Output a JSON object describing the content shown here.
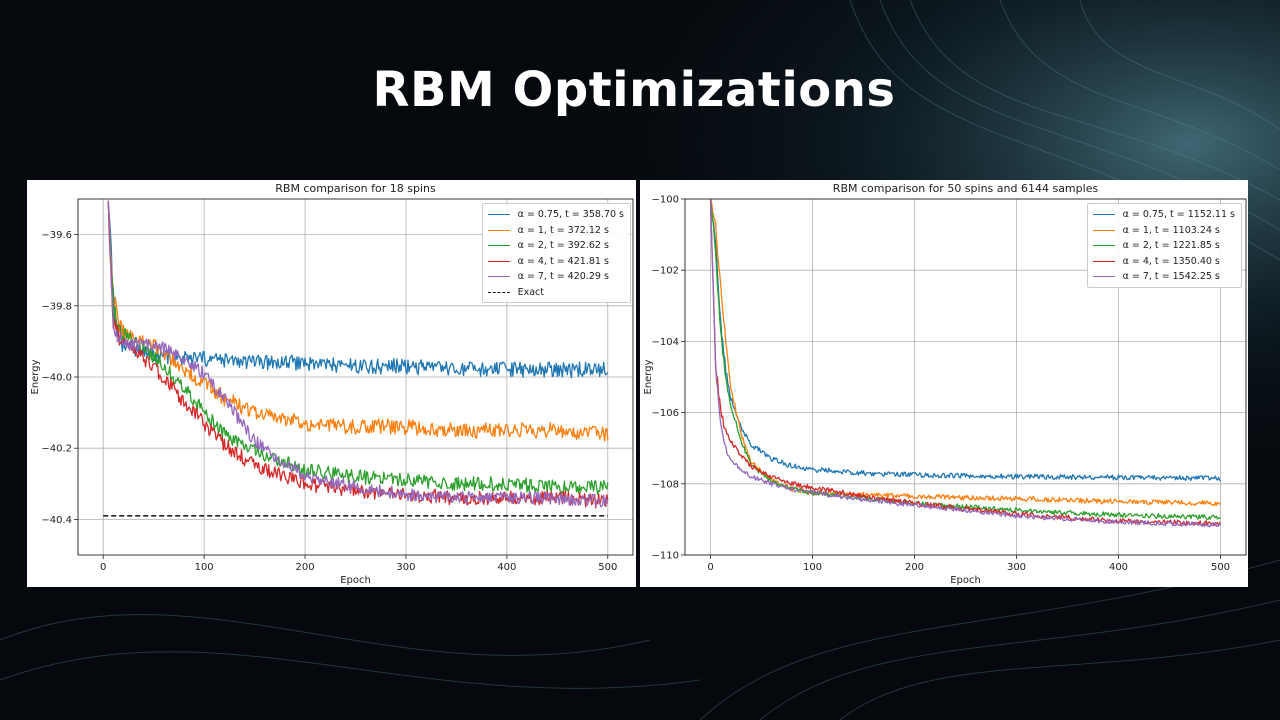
{
  "slide": {
    "title": "RBM Optimizations"
  },
  "colors": {
    "background": "#05080c",
    "alpha_0_75": "#1f77b4",
    "alpha_1": "#ff7f0e",
    "alpha_2": "#2ca02c",
    "alpha_4": "#d62728",
    "alpha_7": "#9467bd",
    "exact": "#000000"
  },
  "chart_data": [
    {
      "type": "line",
      "title": "RBM comparison for 18 spins",
      "xlabel": "Epoch",
      "ylabel": "Energy",
      "xlim": [
        -25,
        525
      ],
      "ylim": [
        -40.5,
        -39.5
      ],
      "xticks": [
        0,
        100,
        200,
        300,
        400,
        500
      ],
      "yticks": [
        -39.6,
        -39.8,
        -40.0,
        -40.2,
        -40.4
      ],
      "ytick_labels": [
        "−39.6",
        "−39.8",
        "−40.0",
        "−40.2",
        "−40.4"
      ],
      "grid": true,
      "legend_position": "top-right",
      "series": [
        {
          "name": "α = 0.75, t = 358.70 s",
          "color": "#1f77b4",
          "x": [
            5,
            10,
            15,
            20,
            30,
            40,
            60,
            80,
            100,
            150,
            200,
            250,
            300,
            350,
            400,
            450,
            500
          ],
          "values": [
            -39.5,
            -39.78,
            -39.88,
            -39.9,
            -39.92,
            -39.93,
            -39.94,
            -39.95,
            -39.95,
            -39.96,
            -39.96,
            -39.97,
            -39.97,
            -39.98,
            -39.98,
            -39.98,
            -39.98
          ],
          "noise": 0.022
        },
        {
          "name": "α = 1, t = 372.12 s",
          "color": "#ff7f0e",
          "x": [
            5,
            10,
            15,
            20,
            30,
            40,
            60,
            80,
            100,
            120,
            150,
            200,
            250,
            300,
            350,
            400,
            450,
            500
          ],
          "values": [
            -39.5,
            -39.78,
            -39.85,
            -39.87,
            -39.89,
            -39.9,
            -39.93,
            -39.98,
            -40.02,
            -40.06,
            -40.1,
            -40.13,
            -40.14,
            -40.14,
            -40.15,
            -40.15,
            -40.15,
            -40.16
          ],
          "noise": 0.022
        },
        {
          "name": "α = 2, t = 392.62 s",
          "color": "#2ca02c",
          "x": [
            5,
            10,
            15,
            20,
            30,
            40,
            60,
            80,
            100,
            120,
            150,
            200,
            250,
            300,
            350,
            400,
            450,
            500
          ],
          "values": [
            -39.5,
            -39.8,
            -39.86,
            -39.88,
            -39.9,
            -39.92,
            -39.97,
            -40.03,
            -40.1,
            -40.16,
            -40.21,
            -40.26,
            -40.28,
            -40.29,
            -40.3,
            -40.3,
            -40.31,
            -40.31
          ],
          "noise": 0.02
        },
        {
          "name": "α = 4, t = 421.81 s",
          "color": "#d62728",
          "x": [
            5,
            10,
            15,
            20,
            30,
            40,
            60,
            80,
            100,
            120,
            150,
            200,
            250,
            300,
            350,
            400,
            450,
            500
          ],
          "values": [
            -39.5,
            -39.86,
            -39.88,
            -39.9,
            -39.92,
            -39.95,
            -40.0,
            -40.07,
            -40.13,
            -40.19,
            -40.25,
            -40.3,
            -40.32,
            -40.33,
            -40.34,
            -40.34,
            -40.34,
            -40.35
          ],
          "noise": 0.02
        },
        {
          "name": "α = 7, t = 420.29 s",
          "color": "#9467bd",
          "x": [
            5,
            10,
            15,
            20,
            30,
            40,
            60,
            80,
            100,
            120,
            150,
            200,
            250,
            300,
            350,
            400,
            450,
            500
          ],
          "values": [
            -39.5,
            -39.88,
            -39.9,
            -39.91,
            -39.91,
            -39.91,
            -39.92,
            -39.95,
            -39.99,
            -40.06,
            -40.18,
            -40.28,
            -40.31,
            -40.33,
            -40.34,
            -40.34,
            -40.34,
            -40.35
          ],
          "noise": 0.018
        },
        {
          "name": "Exact",
          "color": "#000000",
          "dashed": true,
          "x": [
            0,
            500
          ],
          "values": [
            -40.39,
            -40.39
          ]
        }
      ]
    },
    {
      "type": "line",
      "title": "RBM comparison for 50 spins and 6144 samples",
      "xlabel": "Epoch",
      "ylabel": "Energy",
      "xlim": [
        -25,
        525
      ],
      "ylim": [
        -110,
        -100
      ],
      "xticks": [
        0,
        100,
        200,
        300,
        400,
        500
      ],
      "yticks": [
        -100,
        -102,
        -104,
        -106,
        -108,
        -110
      ],
      "ytick_labels": [
        "−100",
        "−102",
        "−104",
        "−106",
        "−108",
        "−110"
      ],
      "grid": true,
      "legend_position": "top-right",
      "series": [
        {
          "name": "α = 0.75, t = 1152.11 s",
          "color": "#1f77b4",
          "x": [
            0,
            5,
            10,
            15,
            20,
            30,
            40,
            60,
            80,
            100,
            150,
            200,
            300,
            400,
            500
          ],
          "values": [
            -100,
            -101.2,
            -103.5,
            -104.8,
            -105.6,
            -106.4,
            -106.9,
            -107.3,
            -107.5,
            -107.6,
            -107.7,
            -107.75,
            -107.8,
            -107.82,
            -107.85
          ],
          "noise": 0.07
        },
        {
          "name": "α = 1, t = 1103.24 s",
          "color": "#ff7f0e",
          "x": [
            0,
            5,
            10,
            15,
            20,
            30,
            40,
            60,
            80,
            100,
            150,
            200,
            300,
            400,
            500
          ],
          "values": [
            -100,
            -100.8,
            -102.5,
            -104.0,
            -105.3,
            -106.6,
            -107.4,
            -107.9,
            -108.15,
            -108.25,
            -108.3,
            -108.35,
            -108.42,
            -108.5,
            -108.55
          ],
          "noise": 0.07
        },
        {
          "name": "α = 2, t = 1221.85 s",
          "color": "#2ca02c",
          "x": [
            0,
            5,
            10,
            15,
            20,
            30,
            40,
            60,
            80,
            100,
            150,
            200,
            300,
            400,
            500
          ],
          "values": [
            -100,
            -101.5,
            -103.8,
            -105.0,
            -105.8,
            -106.8,
            -107.5,
            -107.95,
            -108.15,
            -108.25,
            -108.4,
            -108.55,
            -108.75,
            -108.88,
            -108.95
          ],
          "noise": 0.07
        },
        {
          "name": "α = 4, t = 1350.40 s",
          "color": "#d62728",
          "x": [
            0,
            5,
            10,
            15,
            20,
            30,
            40,
            60,
            80,
            100,
            150,
            200,
            300,
            400,
            500
          ],
          "values": [
            -100,
            -104.6,
            -106.0,
            -106.5,
            -106.8,
            -107.2,
            -107.5,
            -107.8,
            -108.0,
            -108.1,
            -108.35,
            -108.55,
            -108.85,
            -109.05,
            -109.12
          ],
          "noise": 0.07
        },
        {
          "name": "α = 7, t = 1542.25 s",
          "color": "#9467bd",
          "x": [
            0,
            5,
            10,
            15,
            20,
            30,
            40,
            60,
            80,
            100,
            150,
            200,
            300,
            400,
            500
          ],
          "values": [
            -100,
            -104.7,
            -106.4,
            -107.0,
            -107.3,
            -107.6,
            -107.8,
            -108.0,
            -108.15,
            -108.25,
            -108.45,
            -108.6,
            -108.9,
            -109.08,
            -109.15
          ],
          "noise": 0.06
        }
      ]
    }
  ]
}
